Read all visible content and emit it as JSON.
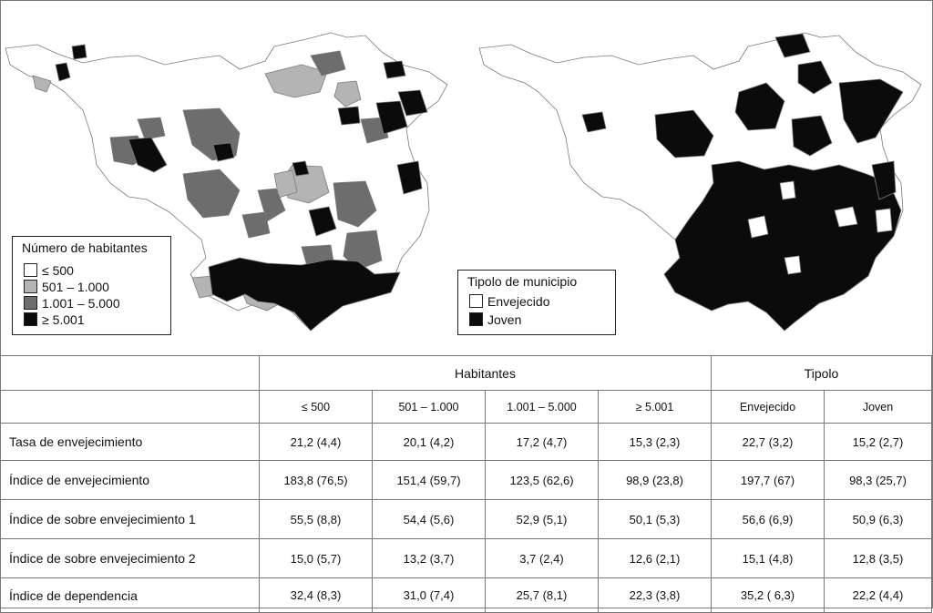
{
  "legend_habitantes": {
    "title": "Número de habitantes",
    "items": [
      {
        "label": "≤ 500",
        "color": "#ffffff"
      },
      {
        "label": "501 – 1.000",
        "color": "#b4b4b4"
      },
      {
        "label": "1.001 – 5.000",
        "color": "#6d6d6d"
      },
      {
        "label": "≥ 5.001",
        "color": "#0b0b0b"
      }
    ]
  },
  "legend_tipolo": {
    "title": "Tipolo de municipio",
    "items": [
      {
        "label": "Envejecido",
        "color": "#ffffff"
      },
      {
        "label": "Joven",
        "color": "#0b0b0b"
      }
    ]
  },
  "table": {
    "group_habitantes": "Habitantes",
    "group_tipolo": "Tipolo",
    "subheaders": [
      "≤ 500",
      "501 – 1.000",
      "1.001 – 5.000",
      "≥ 5.001",
      "Envejecido",
      "Joven"
    ],
    "rows": [
      {
        "label": "Tasa de envejecimiento",
        "values": [
          "21,2 (4,4)",
          "20,1 (4,2)",
          "17,2 (4,7)",
          "15,3 (2,3)",
          "22,7 (3,2)",
          "15,2 (2,7)"
        ]
      },
      {
        "label": "Índice de envejecimiento",
        "values": [
          "183,8 (76,5)",
          "151,4 (59,7)",
          "123,5 (62,6)",
          "98,9 (23,8)",
          "197,7 (67)",
          "98,3 (25,7)"
        ]
      },
      {
        "label": "Índice de sobre envejecimiento 1",
        "values": [
          "55,5 (8,8)",
          "54,4 (5,6)",
          "52,9 (5,1)",
          "50,1 (5,3)",
          "56,6 (6,9)",
          "50,9 (6,3)"
        ]
      },
      {
        "label": "Índice de sobre envejecimiento 2",
        "values": [
          "15,0 (5,7)",
          "13,2 (3,7)",
          "3,7 (2,4)",
          "12,6 (2,1)",
          "15,1 (4,8)",
          "12,8 (3,5)"
        ]
      },
      {
        "label": "Índice de dependencia",
        "values": [
          "32,4 (8,3)",
          "31,0 (7,4)",
          "25,7 (8,1)",
          "22,3 (3,8)",
          "35,2 ( 6,3)",
          "22,2 (4,4)"
        ]
      }
    ]
  }
}
